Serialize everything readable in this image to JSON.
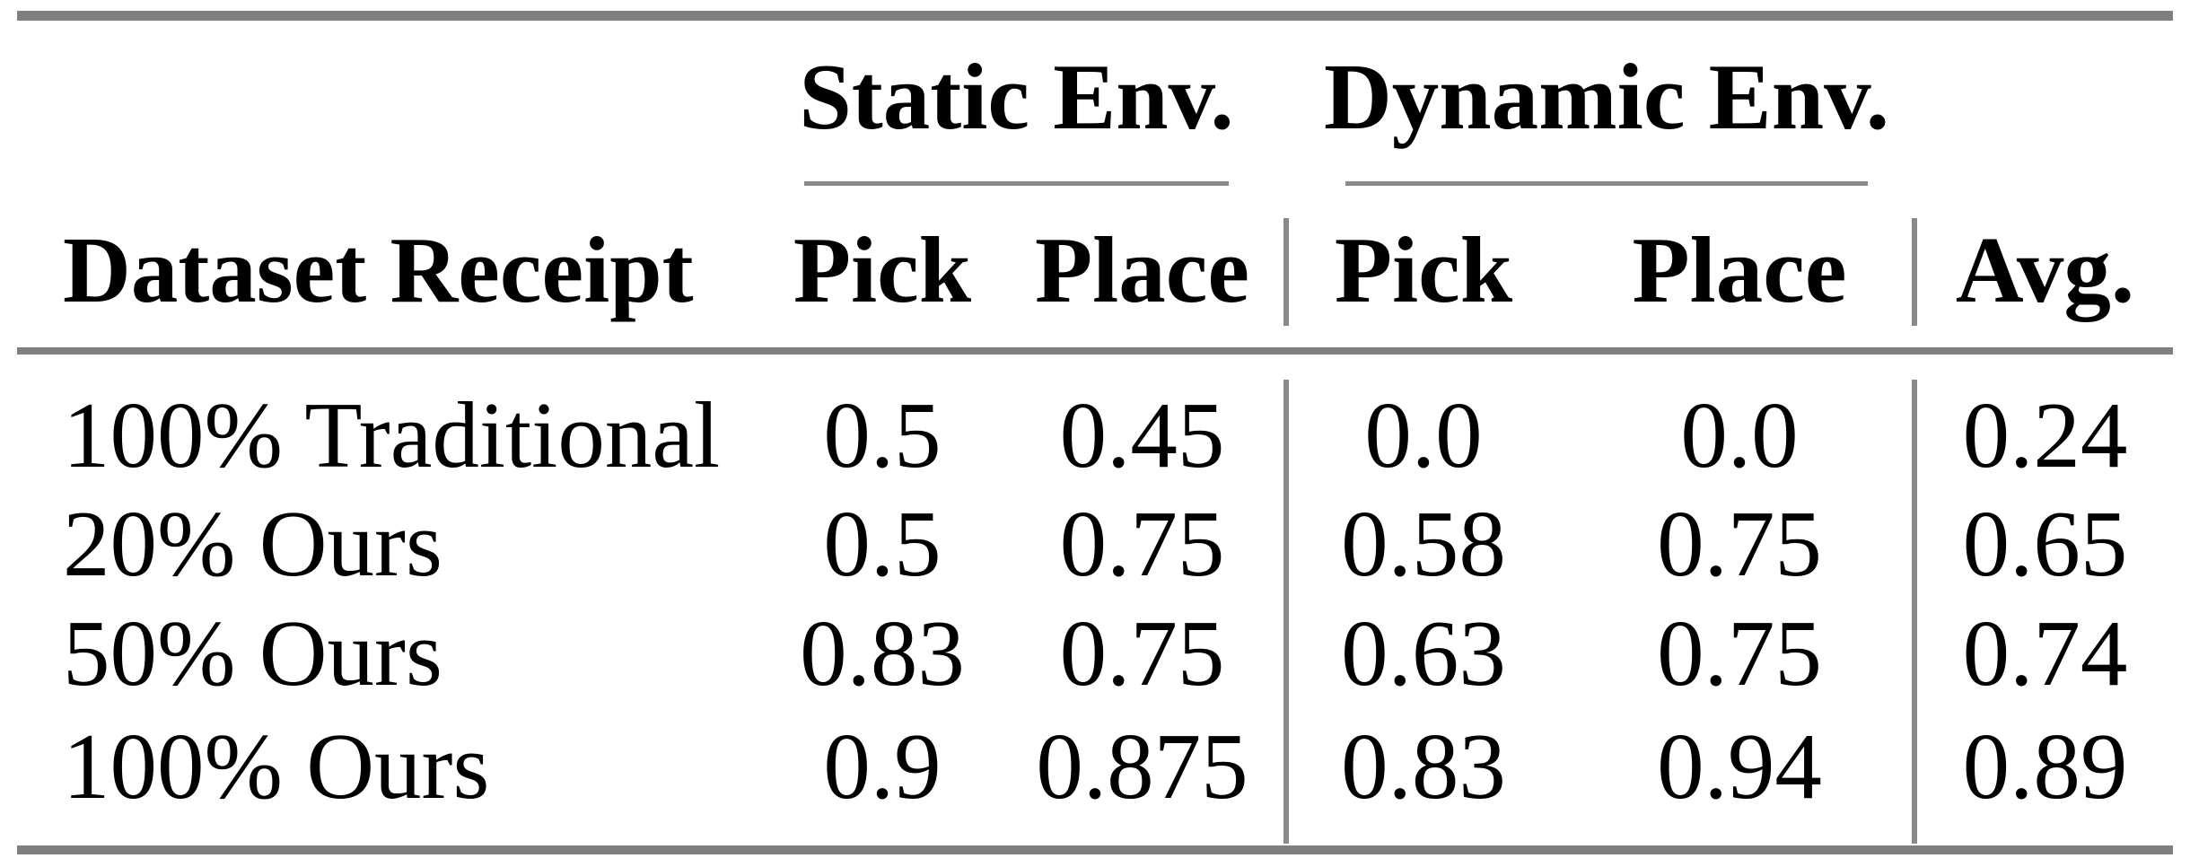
{
  "table": {
    "group_headers": {
      "static": "Static Env.",
      "dynamic": "Dynamic Env."
    },
    "column_headers": {
      "label": "Dataset Receipt",
      "static_pick": "Pick",
      "static_place": "Place",
      "dynamic_pick": "Pick",
      "dynamic_place": "Place",
      "avg": "Avg."
    },
    "rows": [
      {
        "label": "100% Traditional",
        "static_pick": "0.5",
        "static_place": "0.45",
        "dynamic_pick": "0.0",
        "dynamic_place": "0.0",
        "avg": "0.24"
      },
      {
        "label": "20% Ours",
        "static_pick": "0.5",
        "static_place": "0.75",
        "dynamic_pick": "0.58",
        "dynamic_place": "0.75",
        "avg": "0.65"
      },
      {
        "label": "50% Ours",
        "static_pick": "0.83",
        "static_place": "0.75",
        "dynamic_pick": "0.63",
        "dynamic_place": "0.75",
        "avg": "0.74"
      },
      {
        "label": "100% Ours",
        "static_pick": "0.9",
        "static_place": "0.875",
        "dynamic_pick": "0.83",
        "dynamic_place": "0.94",
        "avg": "0.89"
      }
    ]
  },
  "colors": {
    "background": "#ffffff",
    "text": "#000000",
    "rule_gray": "#7f7f7f",
    "line_gray": "#8a8a8a"
  },
  "chart_data": {
    "type": "table",
    "columns": [
      "Dataset Receipt",
      "Static Env. Pick",
      "Static Env. Place",
      "Dynamic Env. Pick",
      "Dynamic Env. Place",
      "Avg."
    ],
    "rows": [
      [
        "100% Traditional",
        0.5,
        0.45,
        0.0,
        0.0,
        0.24
      ],
      [
        "20% Ours",
        0.5,
        0.75,
        0.58,
        0.75,
        0.65
      ],
      [
        "50% Ours",
        0.83,
        0.75,
        0.63,
        0.75,
        0.74
      ],
      [
        "100% Ours",
        0.9,
        0.875,
        0.83,
        0.94,
        0.89
      ]
    ]
  }
}
